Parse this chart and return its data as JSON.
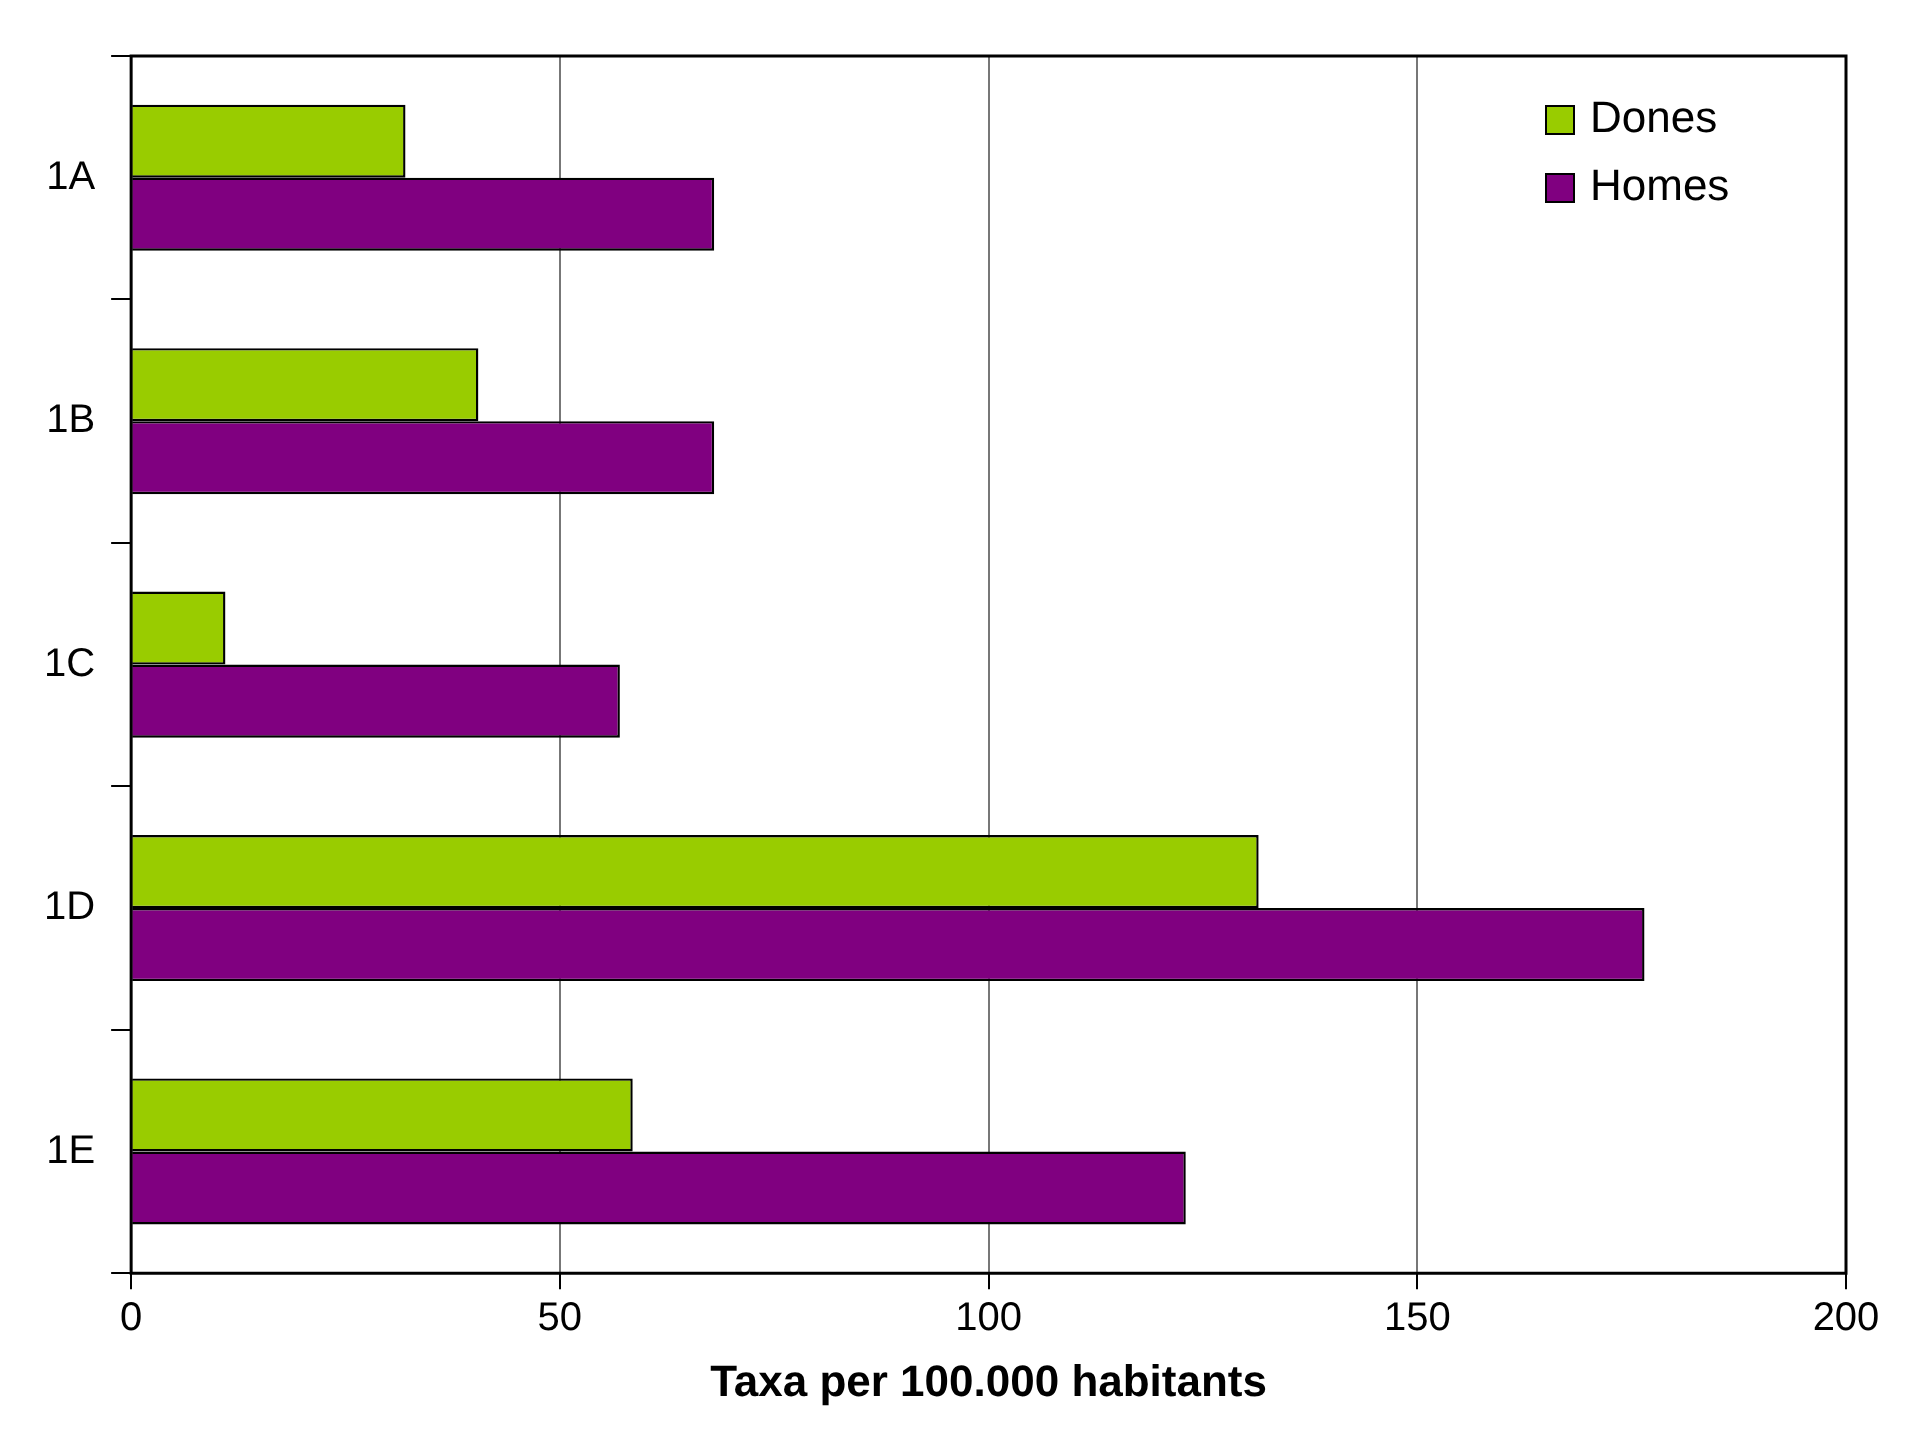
{
  "chart_data": {
    "type": "bar",
    "orientation": "horizontal",
    "xlabel": "Taxa per 100.000 habitants",
    "categories": [
      "1A",
      "1B",
      "1C",
      "1D",
      "1E"
    ],
    "series": [
      {
        "name": "Dones",
        "color": "#99cc00",
        "values": [
          32,
          40.5,
          11,
          131.5,
          58.5
        ]
      },
      {
        "name": "Homes",
        "color": "#800080",
        "values": [
          68,
          68,
          57,
          176.5,
          123
        ]
      }
    ],
    "xlim": [
      0,
      200
    ],
    "xticks": [
      0,
      50,
      100,
      150,
      200
    ],
    "grid": "x",
    "legend": "top right"
  }
}
